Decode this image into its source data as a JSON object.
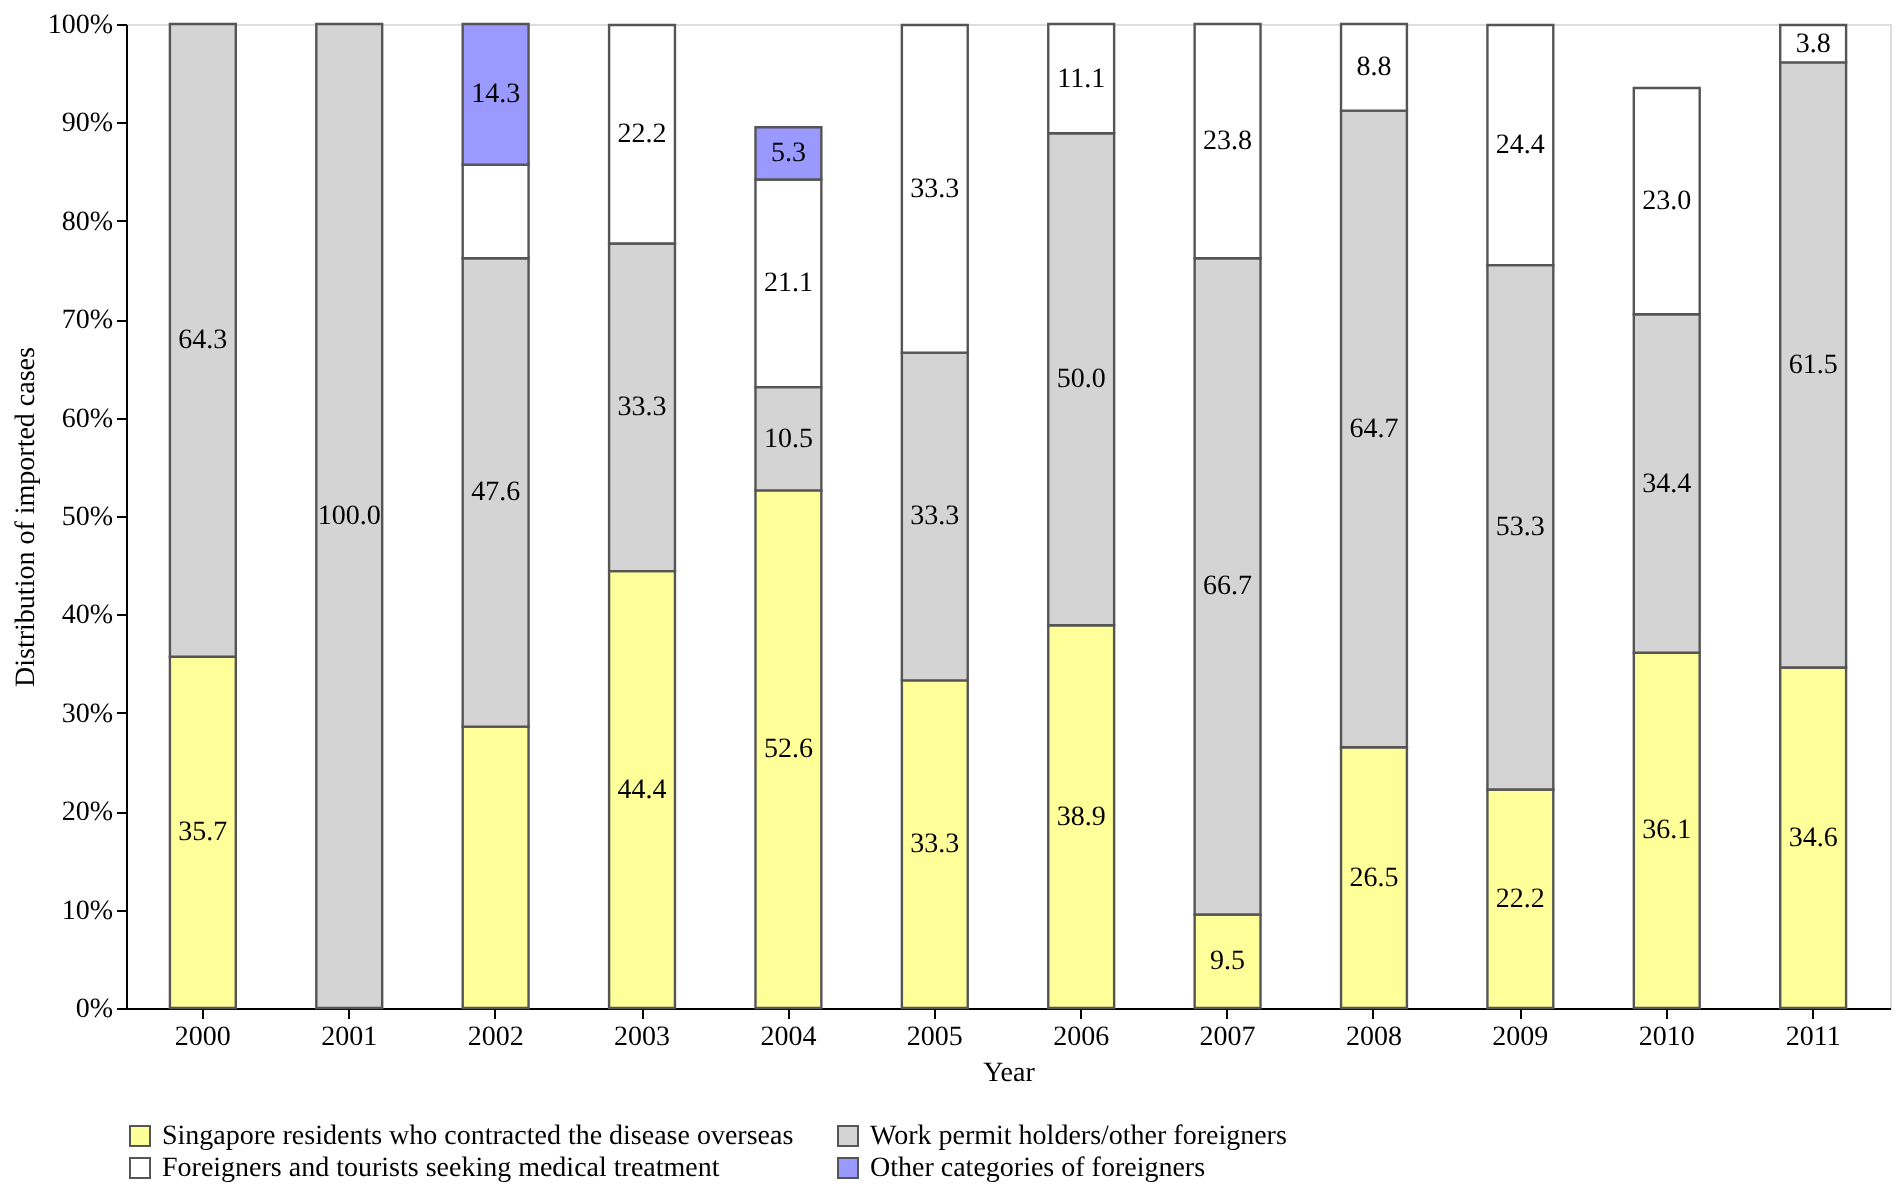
{
  "chart_data": {
    "type": "bar",
    "stacked": true,
    "xlabel": "Year",
    "ylabel": "Distribution of imported cases",
    "categories": [
      "2000",
      "2001",
      "2002",
      "2003",
      "2004",
      "2005",
      "2006",
      "2007",
      "2008",
      "2009",
      "2010",
      "2011"
    ],
    "ylim": [
      0,
      100
    ],
    "yticks": [
      {
        "value": 0,
        "label": "0%"
      },
      {
        "value": 10,
        "label": "10%"
      },
      {
        "value": 20,
        "label": "20%"
      },
      {
        "value": 30,
        "label": "30%"
      },
      {
        "value": 40,
        "label": "40%"
      },
      {
        "value": 50,
        "label": "50%"
      },
      {
        "value": 60,
        "label": "60%"
      },
      {
        "value": 70,
        "label": "70%"
      },
      {
        "value": 80,
        "label": "80%"
      },
      {
        "value": 90,
        "label": "90%"
      },
      {
        "value": 100,
        "label": "100%"
      }
    ],
    "grid": false,
    "legend": "bottom",
    "series": [
      {
        "name": "Singapore residents who contracted the disease overseas",
        "color": "#ffff99",
        "values": [
          35.7,
          null,
          28.6,
          44.4,
          52.6,
          33.3,
          38.9,
          9.5,
          26.5,
          22.2,
          36.1,
          34.6
        ],
        "value_labels": [
          "35.7",
          null,
          null,
          "44.4",
          "52.6",
          "33.3",
          "38.9",
          "9.5",
          "26.5",
          "22.2",
          "36.1",
          "34.6"
        ]
      },
      {
        "name": "Work permit holders/other foreigners",
        "color": "#d4d4d4",
        "values": [
          64.3,
          100.0,
          47.6,
          33.3,
          10.5,
          33.3,
          50.0,
          66.7,
          64.7,
          53.3,
          34.4,
          61.5
        ],
        "value_labels": [
          "64.3",
          "100.0",
          "47.6",
          "33.3",
          "10.5",
          "33.3",
          "50.0",
          "66.7",
          "64.7",
          "53.3",
          "34.4",
          "61.5"
        ]
      },
      {
        "name": "Foreigners and tourists seeking medical treatment",
        "color": "#ffffff",
        "values": [
          null,
          null,
          9.5,
          22.2,
          21.1,
          33.3,
          11.1,
          23.8,
          8.8,
          24.4,
          23.0,
          3.8
        ],
        "value_labels": [
          null,
          null,
          null,
          "22.2",
          "21.1",
          "33.3",
          "11.1",
          "23.8",
          "8.8",
          "24.4",
          "23.0",
          "3.8"
        ]
      },
      {
        "name": "Other categories of foreigners",
        "color": "#9999ff",
        "values": [
          null,
          null,
          14.3,
          null,
          5.3,
          null,
          null,
          null,
          null,
          null,
          null,
          null
        ],
        "value_labels": [
          null,
          null,
          "14.3",
          null,
          "5.3",
          null,
          null,
          null,
          null,
          null,
          null,
          null
        ]
      }
    ]
  }
}
